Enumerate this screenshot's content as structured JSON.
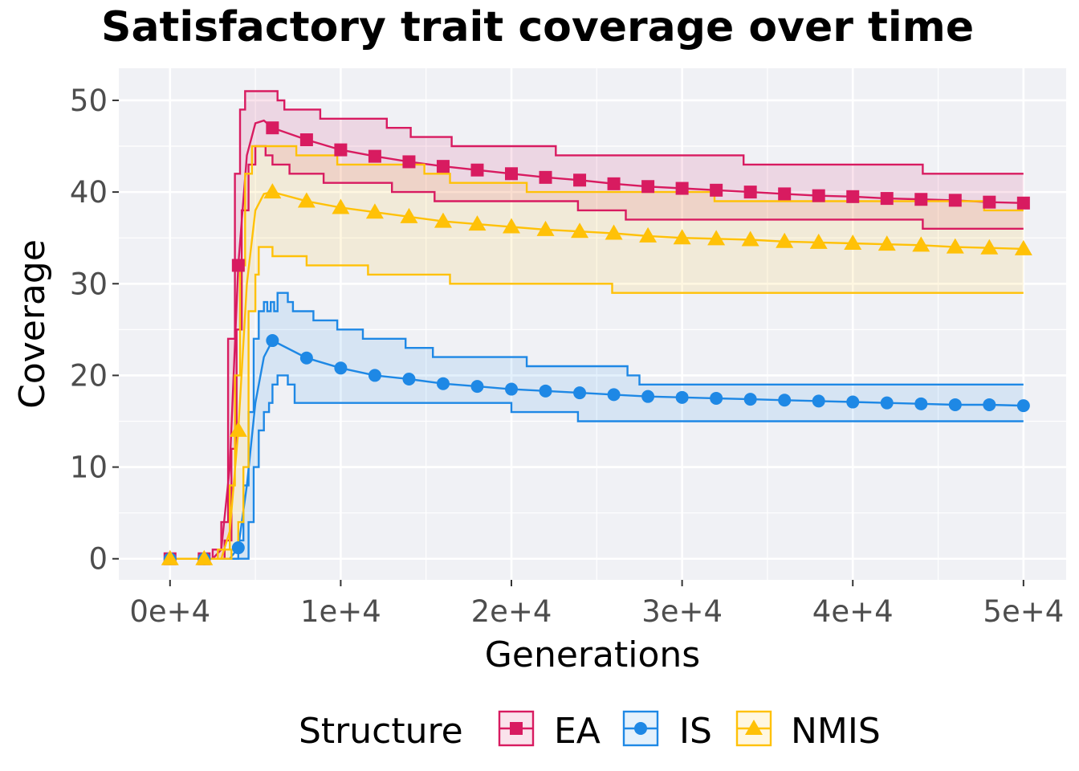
{
  "chart_data": {
    "type": "line",
    "title": "Satisfactory trait coverage over time",
    "xlabel": "Generations",
    "ylabel": "Coverage",
    "xlim": [
      -3000,
      52500
    ],
    "ylim": [
      -2.3,
      53.5
    ],
    "x_ticks": [
      0,
      10000,
      20000,
      30000,
      40000,
      50000
    ],
    "x_tick_labels": [
      "0e+4",
      "1e+4",
      "2e+4",
      "3e+4",
      "4e+4",
      "5e+4"
    ],
    "y_ticks": [
      0,
      10,
      20,
      30,
      40,
      50
    ],
    "y_tick_labels": [
      "0",
      "10",
      "20",
      "30",
      "40",
      "50"
    ],
    "grid": true,
    "legend": {
      "title": "Structure",
      "placement": "bottom"
    },
    "marker_x": [
      0,
      2000,
      4000,
      6000,
      8000,
      10000,
      12000,
      14000,
      16000,
      18000,
      20000,
      22000,
      24000,
      26000,
      28000,
      30000,
      32000,
      34000,
      36000,
      38000,
      40000,
      42000,
      44000,
      46000,
      48000,
      50000
    ],
    "series": [
      {
        "name": "EA",
        "color": "#d81b60",
        "marker": "square",
        "mean": [
          [
            0,
            0
          ],
          [
            2500,
            0
          ],
          [
            3000,
            1
          ],
          [
            3500,
            10
          ],
          [
            4000,
            32
          ],
          [
            4500,
            44
          ],
          [
            5000,
            47.5
          ],
          [
            5500,
            47.8
          ],
          [
            6000,
            47
          ],
          [
            8000,
            45.7
          ],
          [
            10000,
            44.6
          ],
          [
            12000,
            43.9
          ],
          [
            14000,
            43.3
          ],
          [
            16000,
            42.8
          ],
          [
            18000,
            42.4
          ],
          [
            20000,
            42.0
          ],
          [
            22000,
            41.6
          ],
          [
            24000,
            41.3
          ],
          [
            26000,
            40.9
          ],
          [
            28000,
            40.6
          ],
          [
            30000,
            40.4
          ],
          [
            32000,
            40.2
          ],
          [
            34000,
            40.0
          ],
          [
            36000,
            39.8
          ],
          [
            38000,
            39.6
          ],
          [
            40000,
            39.5
          ],
          [
            42000,
            39.3
          ],
          [
            44000,
            39.2
          ],
          [
            46000,
            39.1
          ],
          [
            48000,
            38.9
          ],
          [
            50000,
            38.8
          ]
        ],
        "upper": [
          [
            0,
            0
          ],
          [
            2500,
            1
          ],
          [
            3000,
            4
          ],
          [
            3400,
            24
          ],
          [
            3800,
            42
          ],
          [
            4100,
            49
          ],
          [
            4400,
            51
          ],
          [
            6300,
            50
          ],
          [
            6700,
            49
          ],
          [
            8800,
            48
          ],
          [
            12700,
            47
          ],
          [
            14100,
            46
          ],
          [
            16500,
            45
          ],
          [
            22600,
            44
          ],
          [
            33600,
            43
          ],
          [
            44100,
            42
          ],
          [
            50000,
            42
          ]
        ],
        "lower": [
          [
            0,
            0
          ],
          [
            2800,
            0
          ],
          [
            3200,
            2
          ],
          [
            3600,
            12
          ],
          [
            3900,
            25
          ],
          [
            4200,
            38
          ],
          [
            4600,
            43
          ],
          [
            5000,
            45
          ],
          [
            5600,
            44
          ],
          [
            6000,
            43
          ],
          [
            7000,
            42
          ],
          [
            9000,
            41
          ],
          [
            13000,
            40
          ],
          [
            15500,
            39
          ],
          [
            23900,
            38
          ],
          [
            26700,
            37
          ],
          [
            44100,
            36
          ],
          [
            50000,
            36
          ]
        ]
      },
      {
        "name": "IS",
        "color": "#1e88e5",
        "marker": "circle",
        "mean": [
          [
            0,
            0
          ],
          [
            3500,
            0
          ],
          [
            4000,
            1.2
          ],
          [
            4500,
            8
          ],
          [
            5000,
            17
          ],
          [
            5500,
            22
          ],
          [
            6000,
            23.8
          ],
          [
            8000,
            21.9
          ],
          [
            10000,
            20.8
          ],
          [
            12000,
            20.0
          ],
          [
            14000,
            19.6
          ],
          [
            16000,
            19.1
          ],
          [
            18000,
            18.8
          ],
          [
            20000,
            18.5
          ],
          [
            22000,
            18.3
          ],
          [
            24000,
            18.1
          ],
          [
            26000,
            17.9
          ],
          [
            28000,
            17.7
          ],
          [
            30000,
            17.6
          ],
          [
            32000,
            17.5
          ],
          [
            34000,
            17.4
          ],
          [
            36000,
            17.3
          ],
          [
            38000,
            17.2
          ],
          [
            40000,
            17.1
          ],
          [
            42000,
            17.0
          ],
          [
            44000,
            16.9
          ],
          [
            46000,
            16.8
          ],
          [
            48000,
            16.8
          ],
          [
            50000,
            16.7
          ]
        ],
        "upper": [
          [
            0,
            0
          ],
          [
            4000,
            2
          ],
          [
            4300,
            8
          ],
          [
            4600,
            16
          ],
          [
            4900,
            24
          ],
          [
            5200,
            27
          ],
          [
            5500,
            28
          ],
          [
            5700,
            27
          ],
          [
            5900,
            28
          ],
          [
            6100,
            27
          ],
          [
            6300,
            29
          ],
          [
            6900,
            28
          ],
          [
            7200,
            27
          ],
          [
            8400,
            26
          ],
          [
            9800,
            25
          ],
          [
            11300,
            24
          ],
          [
            13800,
            23
          ],
          [
            15400,
            22
          ],
          [
            20900,
            21
          ],
          [
            26800,
            20
          ],
          [
            27500,
            19
          ],
          [
            50000,
            19
          ]
        ],
        "lower": [
          [
            0,
            0
          ],
          [
            4300,
            0
          ],
          [
            4600,
            4
          ],
          [
            4900,
            10
          ],
          [
            5200,
            14
          ],
          [
            5500,
            16
          ],
          [
            5800,
            17
          ],
          [
            6000,
            19
          ],
          [
            6300,
            20
          ],
          [
            6900,
            19
          ],
          [
            7300,
            17
          ],
          [
            20000,
            16
          ],
          [
            23900,
            15
          ],
          [
            50000,
            15
          ]
        ]
      },
      {
        "name": "NMIS",
        "color": "#ffc107",
        "marker": "triangle",
        "mean": [
          [
            0,
            0
          ],
          [
            3000,
            0
          ],
          [
            3500,
            3
          ],
          [
            4000,
            14
          ],
          [
            4500,
            30
          ],
          [
            5000,
            38
          ],
          [
            5500,
            39.8
          ],
          [
            6000,
            40
          ],
          [
            8000,
            39
          ],
          [
            10000,
            38.3
          ],
          [
            12000,
            37.8
          ],
          [
            14000,
            37.3
          ],
          [
            16000,
            36.8
          ],
          [
            18000,
            36.5
          ],
          [
            20000,
            36.2
          ],
          [
            22000,
            35.9
          ],
          [
            24000,
            35.7
          ],
          [
            26000,
            35.5
          ],
          [
            28000,
            35.2
          ],
          [
            30000,
            35.0
          ],
          [
            32000,
            34.9
          ],
          [
            34000,
            34.8
          ],
          [
            36000,
            34.6
          ],
          [
            38000,
            34.5
          ],
          [
            40000,
            34.4
          ],
          [
            42000,
            34.3
          ],
          [
            44000,
            34.2
          ],
          [
            46000,
            34.0
          ],
          [
            48000,
            33.9
          ],
          [
            50000,
            33.8
          ]
        ],
        "upper": [
          [
            0,
            0
          ],
          [
            2800,
            1
          ],
          [
            3500,
            8
          ],
          [
            3800,
            20
          ],
          [
            4100,
            32
          ],
          [
            4400,
            42
          ],
          [
            4800,
            45
          ],
          [
            7400,
            44
          ],
          [
            9800,
            43
          ],
          [
            14900,
            42
          ],
          [
            16400,
            41
          ],
          [
            20900,
            40
          ],
          [
            31900,
            39
          ],
          [
            47700,
            38
          ],
          [
            50000,
            38
          ]
        ],
        "lower": [
          [
            0,
            0
          ],
          [
            3600,
            1
          ],
          [
            4000,
            4
          ],
          [
            4300,
            10
          ],
          [
            4600,
            27
          ],
          [
            5000,
            31
          ],
          [
            5200,
            34
          ],
          [
            6000,
            33
          ],
          [
            8000,
            32
          ],
          [
            11600,
            31
          ],
          [
            16400,
            30
          ],
          [
            25900,
            29
          ],
          [
            50000,
            29
          ]
        ]
      }
    ]
  }
}
